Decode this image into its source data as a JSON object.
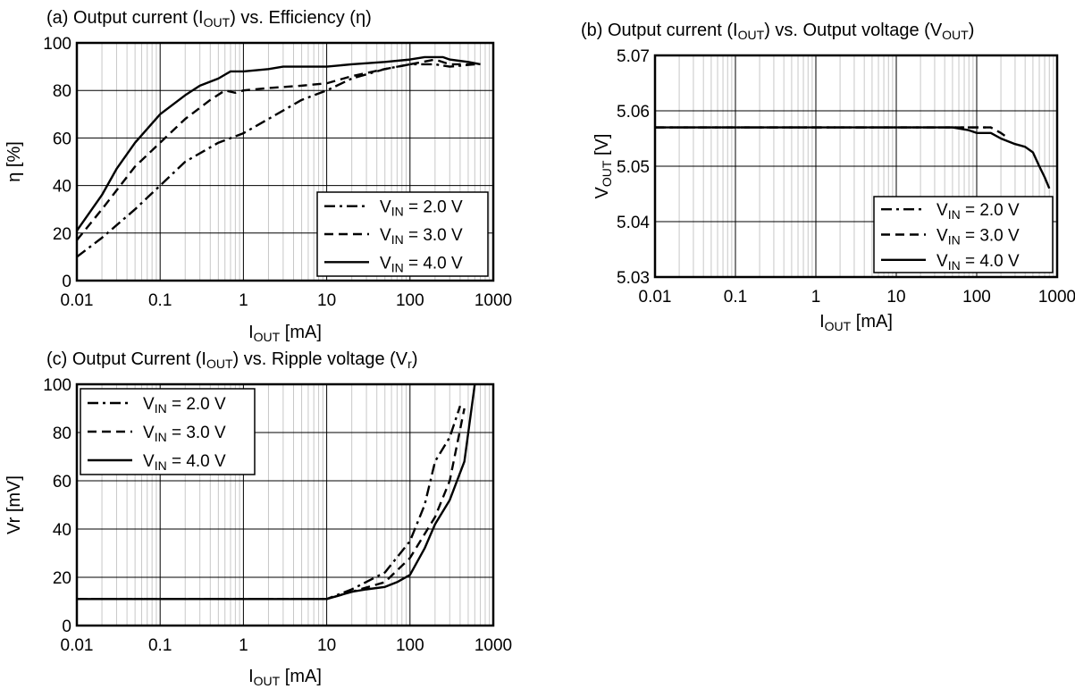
{
  "chart_data": [
    {
      "type": "line",
      "title": [
        "(a) Output current (I",
        "OUT",
        ") vs. Efficiency (η)"
      ],
      "xlabel": [
        "I",
        "OUT",
        " [mA]"
      ],
      "ylabel": "η [%]",
      "x_scale": "log",
      "xlim": [
        0.01,
        1000
      ],
      "ylim": [
        0,
        100
      ],
      "x_ticks": [
        "0.01",
        "0.1",
        "1",
        "10",
        "100",
        "1000"
      ],
      "y_ticks": [
        "0",
        "20",
        "40",
        "60",
        "80",
        "100"
      ],
      "grid": true,
      "legend_position": "bottom-right",
      "series": [
        {
          "name": [
            "V",
            "IN",
            " = 2.0 V"
          ],
          "dash": "dash-dot",
          "points": [
            [
              0.01,
              10
            ],
            [
              0.02,
              18
            ],
            [
              0.05,
              30
            ],
            [
              0.1,
              40
            ],
            [
              0.2,
              50
            ],
            [
              0.5,
              58
            ],
            [
              1,
              62
            ],
            [
              2,
              68
            ],
            [
              5,
              76
            ],
            [
              10,
              80
            ],
            [
              20,
              85
            ],
            [
              50,
              89
            ],
            [
              100,
              91
            ],
            [
              200,
              91
            ],
            [
              300,
              90
            ],
            [
              600,
              91
            ]
          ]
        },
        {
          "name": [
            "V",
            "IN",
            " = 3.0 V"
          ],
          "dash": "dashed",
          "points": [
            [
              0.01,
              17
            ],
            [
              0.02,
              30
            ],
            [
              0.05,
              48
            ],
            [
              0.1,
              58
            ],
            [
              0.2,
              68
            ],
            [
              0.4,
              76
            ],
            [
              0.6,
              80
            ],
            [
              0.8,
              79
            ],
            [
              1,
              80
            ],
            [
              2,
              81
            ],
            [
              5,
              82
            ],
            [
              10,
              83
            ],
            [
              20,
              86
            ],
            [
              50,
              89
            ],
            [
              100,
              91
            ],
            [
              200,
              93
            ],
            [
              300,
              91
            ],
            [
              600,
              91
            ]
          ]
        },
        {
          "name": [
            "V",
            "IN",
            " = 4.0 V"
          ],
          "dash": "solid",
          "points": [
            [
              0.01,
              21
            ],
            [
              0.02,
              36
            ],
            [
              0.03,
              47
            ],
            [
              0.05,
              58
            ],
            [
              0.1,
              70
            ],
            [
              0.2,
              78
            ],
            [
              0.3,
              82
            ],
            [
              0.5,
              85
            ],
            [
              0.7,
              88
            ],
            [
              1,
              88
            ],
            [
              2,
              89
            ],
            [
              3,
              90
            ],
            [
              10,
              90
            ],
            [
              20,
              91
            ],
            [
              50,
              92
            ],
            [
              100,
              93
            ],
            [
              150,
              94
            ],
            [
              250,
              94
            ],
            [
              300,
              93
            ],
            [
              500,
              92
            ],
            [
              700,
              91
            ]
          ]
        }
      ]
    },
    {
      "type": "line",
      "title": [
        "(b) Output current (I",
        "OUT",
        ") vs. Output voltage (V",
        "OUT",
        ")"
      ],
      "xlabel": [
        "I",
        "OUT",
        " [mA]"
      ],
      "ylabel": [
        "V",
        "OUT",
        " [V]"
      ],
      "x_scale": "log",
      "xlim": [
        0.01,
        1000
      ],
      "ylim": [
        5.03,
        5.07
      ],
      "x_ticks": [
        "0.01",
        "0.1",
        "1",
        "10",
        "100",
        "1000"
      ],
      "y_ticks": [
        "5.03",
        "5.04",
        "5.05",
        "5.06",
        "5.07"
      ],
      "grid": true,
      "legend_position": "bottom-right",
      "series": [
        {
          "name": [
            "V",
            "IN",
            " = 2.0 V"
          ],
          "dash": "dash-dot",
          "points": [
            [
              0.01,
              5.057
            ],
            [
              10,
              5.057
            ],
            [
              50,
              5.057
            ],
            [
              100,
              5.057
            ],
            [
              150,
              5.057
            ]
          ]
        },
        {
          "name": [
            "V",
            "IN",
            " = 3.0 V"
          ],
          "dash": "dashed",
          "points": [
            [
              0.01,
              5.057
            ],
            [
              10,
              5.057
            ],
            [
              50,
              5.057
            ],
            [
              100,
              5.057
            ],
            [
              150,
              5.057
            ],
            [
              200,
              5.056
            ],
            [
              250,
              5.055
            ]
          ]
        },
        {
          "name": [
            "V",
            "IN",
            " = 4.0 V"
          ],
          "dash": "solid",
          "points": [
            [
              0.01,
              5.057
            ],
            [
              10,
              5.057
            ],
            [
              50,
              5.057
            ],
            [
              80,
              5.0565
            ],
            [
              100,
              5.056
            ],
            [
              150,
              5.056
            ],
            [
              200,
              5.055
            ],
            [
              300,
              5.054
            ],
            [
              400,
              5.0535
            ],
            [
              500,
              5.0525
            ],
            [
              600,
              5.05
            ],
            [
              700,
              5.048
            ],
            [
              800,
              5.046
            ]
          ]
        }
      ]
    },
    {
      "type": "line",
      "title": [
        "(c) Output Current (I",
        "OUT",
        ") vs. Ripple voltage (V",
        "r",
        ")"
      ],
      "xlabel": [
        "I",
        "OUT",
        " [mA]"
      ],
      "ylabel": "Vr [mV]",
      "x_scale": "log",
      "xlim": [
        0.01,
        1000
      ],
      "ylim": [
        0,
        100
      ],
      "x_ticks": [
        "0.01",
        "0.1",
        "1",
        "10",
        "100",
        "1000"
      ],
      "y_ticks": [
        "0",
        "20",
        "40",
        "60",
        "80",
        "100"
      ],
      "grid": true,
      "legend_position": "top-left",
      "series": [
        {
          "name": [
            "V",
            "IN",
            " = 2.0 V"
          ],
          "dash": "dash-dot",
          "points": [
            [
              0.01,
              11
            ],
            [
              10,
              11
            ],
            [
              20,
              15
            ],
            [
              50,
              22
            ],
            [
              100,
              35
            ],
            [
              150,
              50
            ],
            [
              200,
              68
            ],
            [
              300,
              78
            ],
            [
              400,
              91
            ]
          ]
        },
        {
          "name": [
            "V",
            "IN",
            " = 3.0 V"
          ],
          "dash": "dashed",
          "points": [
            [
              0.01,
              11
            ],
            [
              10,
              11
            ],
            [
              20,
              14
            ],
            [
              50,
              18
            ],
            [
              100,
              28
            ],
            [
              200,
              45
            ],
            [
              300,
              60
            ],
            [
              450,
              90
            ]
          ]
        },
        {
          "name": [
            "V",
            "IN",
            " = 4.0 V"
          ],
          "dash": "solid",
          "points": [
            [
              0.01,
              11
            ],
            [
              10,
              11
            ],
            [
              20,
              14
            ],
            [
              30,
              15
            ],
            [
              50,
              16
            ],
            [
              70,
              18
            ],
            [
              100,
              21
            ],
            [
              150,
              32
            ],
            [
              200,
              42
            ],
            [
              300,
              52
            ],
            [
              450,
              68
            ],
            [
              600,
              100
            ]
          ]
        }
      ]
    }
  ]
}
